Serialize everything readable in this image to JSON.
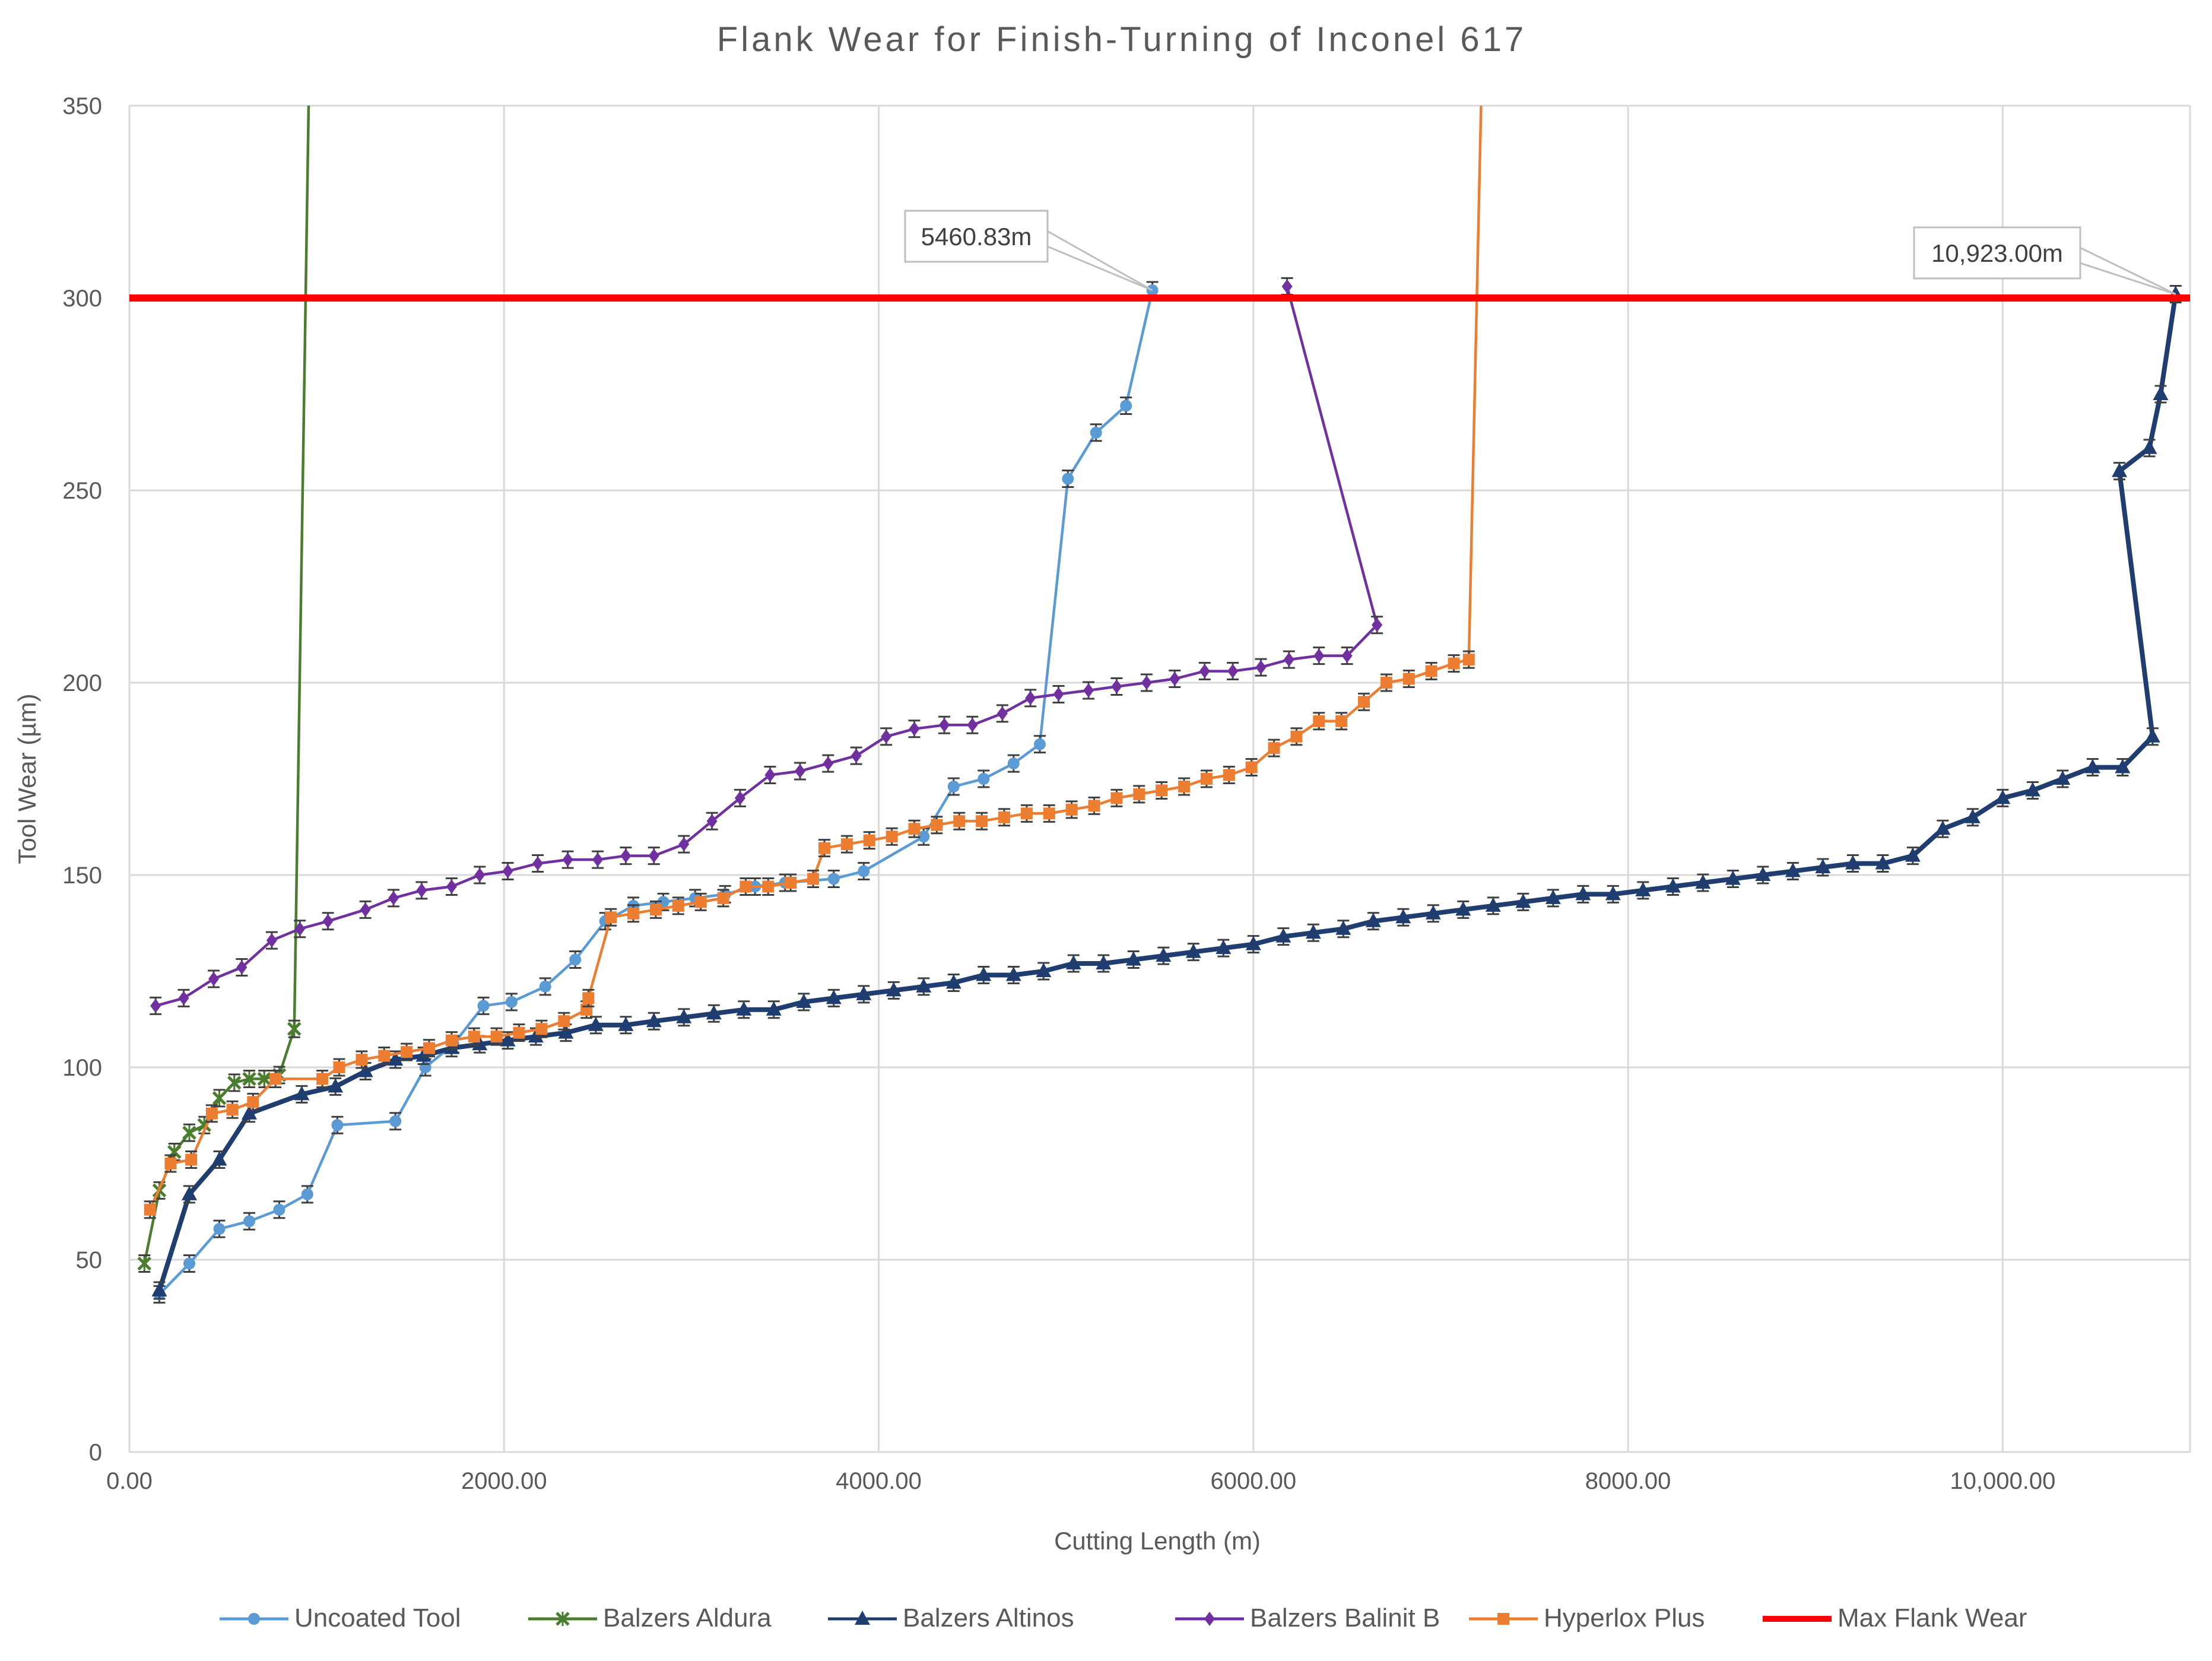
{
  "chart_data": {
    "type": "line",
    "title": "Flank Wear for Finish-Turning of Inconel 617",
    "xlabel": "Cutting Length (m)",
    "ylabel": "Tool Wear (µm)",
    "xlim": [
      0,
      11000
    ],
    "ylim": [
      0,
      350
    ],
    "x_ticks": [
      {
        "value": 0,
        "label": "0.00"
      },
      {
        "value": 2000,
        "label": "2000.00"
      },
      {
        "value": 4000,
        "label": "4000.00"
      },
      {
        "value": 6000,
        "label": "6000.00"
      },
      {
        "value": 8000,
        "label": "8000.00"
      },
      {
        "value": 10000,
        "label": "10,000.00"
      }
    ],
    "y_ticks": [
      {
        "value": 0,
        "label": "0"
      },
      {
        "value": 50,
        "label": "50"
      },
      {
        "value": 100,
        "label": "100"
      },
      {
        "value": 150,
        "label": "150"
      },
      {
        "value": 200,
        "label": "200"
      },
      {
        "value": 250,
        "label": "250"
      },
      {
        "value": 300,
        "label": "300"
      },
      {
        "value": 350,
        "label": "350"
      }
    ],
    "grid": true,
    "legend_position": "bottom",
    "error_bars": true,
    "series": [
      {
        "name": "Uncoated Tool",
        "color": "#5B9BD5",
        "marker": "circle",
        "points": [
          [
            160,
            41
          ],
          [
            320,
            49
          ],
          [
            480,
            58
          ],
          [
            640,
            60
          ],
          [
            800,
            63
          ],
          [
            950,
            67
          ],
          [
            1110,
            85
          ],
          [
            1420,
            86
          ],
          [
            1580,
            100
          ],
          [
            1730,
            106
          ],
          [
            1890,
            116
          ],
          [
            2040,
            117
          ],
          [
            2220,
            121
          ],
          [
            2380,
            128
          ],
          [
            2540,
            138
          ],
          [
            2690,
            142
          ],
          [
            2850,
            143
          ],
          [
            3020,
            144
          ],
          [
            3180,
            145
          ],
          [
            3340,
            147
          ],
          [
            3500,
            148
          ],
          [
            3760,
            149
          ],
          [
            3920,
            151
          ],
          [
            4240,
            160
          ],
          [
            4400,
            173
          ],
          [
            4560,
            175
          ],
          [
            4720,
            179
          ],
          [
            4860,
            184
          ],
          [
            5010,
            253
          ],
          [
            5160,
            265
          ],
          [
            5320,
            272
          ],
          [
            5460.83,
            302
          ]
        ]
      },
      {
        "name": "Balzers Aldura",
        "color": "#4A7D2E",
        "marker": "x",
        "points": [
          [
            80,
            49
          ],
          [
            160,
            68
          ],
          [
            240,
            78
          ],
          [
            320,
            83
          ],
          [
            400,
            85
          ],
          [
            480,
            92
          ],
          [
            560,
            96
          ],
          [
            640,
            97
          ],
          [
            720,
            97
          ],
          [
            800,
            98
          ],
          [
            880,
            110
          ],
          [
            960,
            360
          ]
        ]
      },
      {
        "name": "Balzers Altinos",
        "color": "#1F3D6E",
        "marker": "triangle",
        "points": [
          [
            160,
            42
          ],
          [
            320,
            67
          ],
          [
            480,
            76
          ],
          [
            640,
            88
          ],
          [
            920,
            93
          ],
          [
            1100,
            95
          ],
          [
            1260,
            99
          ],
          [
            1420,
            102
          ],
          [
            1570,
            103
          ],
          [
            1720,
            105
          ],
          [
            1870,
            106
          ],
          [
            2020,
            107
          ],
          [
            2170,
            108
          ],
          [
            2330,
            109
          ],
          [
            2490,
            111
          ],
          [
            2650,
            111
          ],
          [
            2800,
            112
          ],
          [
            2960,
            113
          ],
          [
            3120,
            114
          ],
          [
            3280,
            115
          ],
          [
            3440,
            115
          ],
          [
            3600,
            117
          ],
          [
            3760,
            118
          ],
          [
            3920,
            119
          ],
          [
            4080,
            120
          ],
          [
            4240,
            121
          ],
          [
            4400,
            122
          ],
          [
            4560,
            124
          ],
          [
            4720,
            124
          ],
          [
            4880,
            125
          ],
          [
            5040,
            127
          ],
          [
            5200,
            127
          ],
          [
            5360,
            128
          ],
          [
            5520,
            129
          ],
          [
            5680,
            130
          ],
          [
            5840,
            131
          ],
          [
            6000,
            132
          ],
          [
            6160,
            134
          ],
          [
            6320,
            135
          ],
          [
            6480,
            136
          ],
          [
            6640,
            138
          ],
          [
            6800,
            139
          ],
          [
            6960,
            140
          ],
          [
            7120,
            141
          ],
          [
            7280,
            142
          ],
          [
            7440,
            143
          ],
          [
            7600,
            144
          ],
          [
            7760,
            145
          ],
          [
            7920,
            145
          ],
          [
            8080,
            146
          ],
          [
            8240,
            147
          ],
          [
            8400,
            148
          ],
          [
            8560,
            149
          ],
          [
            8720,
            150
          ],
          [
            8880,
            151
          ],
          [
            9040,
            152
          ],
          [
            9200,
            153
          ],
          [
            9360,
            153
          ],
          [
            9520,
            155
          ],
          [
            9680,
            162
          ],
          [
            9840,
            165
          ],
          [
            10000,
            170
          ],
          [
            10160,
            172
          ],
          [
            10320,
            175
          ],
          [
            10480,
            178
          ],
          [
            10640,
            178
          ],
          [
            10800,
            186
          ],
          [
            10623,
            255
          ],
          [
            10783,
            261
          ],
          [
            10843,
            275
          ],
          [
            10923,
            301
          ]
        ]
      },
      {
        "name": "Balzers Balinit B",
        "color": "#7030A0",
        "marker": "diamond",
        "points": [
          [
            140,
            116
          ],
          [
            290,
            118
          ],
          [
            450,
            123
          ],
          [
            600,
            126
          ],
          [
            760,
            133
          ],
          [
            910,
            136
          ],
          [
            1060,
            138
          ],
          [
            1260,
            141
          ],
          [
            1410,
            144
          ],
          [
            1560,
            146
          ],
          [
            1720,
            147
          ],
          [
            1870,
            150
          ],
          [
            2020,
            151
          ],
          [
            2180,
            153
          ],
          [
            2340,
            154
          ],
          [
            2500,
            154
          ],
          [
            2650,
            155
          ],
          [
            2800,
            155
          ],
          [
            2960,
            158
          ],
          [
            3110,
            164
          ],
          [
            3260,
            170
          ],
          [
            3420,
            176
          ],
          [
            3580,
            177
          ],
          [
            3730,
            179
          ],
          [
            3880,
            181
          ],
          [
            4040,
            186
          ],
          [
            4190,
            188
          ],
          [
            4350,
            189
          ],
          [
            4500,
            189
          ],
          [
            4660,
            192
          ],
          [
            4810,
            196
          ],
          [
            4960,
            197
          ],
          [
            5120,
            198
          ],
          [
            5270,
            199
          ],
          [
            5430,
            200
          ],
          [
            5580,
            201
          ],
          [
            5740,
            203
          ],
          [
            5890,
            203
          ],
          [
            6040,
            204
          ],
          [
            6190,
            206
          ],
          [
            6350,
            207
          ],
          [
            6500,
            207
          ],
          [
            6660,
            215
          ],
          [
            6180,
            303
          ]
        ]
      },
      {
        "name": "Hyperlox Plus",
        "color": "#ED7D31",
        "marker": "square",
        "points": [
          [
            110,
            63
          ],
          [
            220,
            75
          ],
          [
            330,
            76
          ],
          [
            440,
            88
          ],
          [
            550,
            89
          ],
          [
            660,
            91
          ],
          [
            780,
            97
          ],
          [
            1030,
            97
          ],
          [
            1120,
            100
          ],
          [
            1240,
            102
          ],
          [
            1360,
            103
          ],
          [
            1480,
            104
          ],
          [
            1600,
            105
          ],
          [
            1720,
            107
          ],
          [
            1840,
            108
          ],
          [
            1960,
            108
          ],
          [
            2080,
            109
          ],
          [
            2200,
            110
          ],
          [
            2320,
            112
          ],
          [
            2440,
            115
          ],
          [
            2450,
            118
          ],
          [
            2570,
            139
          ],
          [
            2690,
            140
          ],
          [
            2810,
            141
          ],
          [
            2930,
            142
          ],
          [
            3050,
            143
          ],
          [
            3170,
            144
          ],
          [
            3290,
            147
          ],
          [
            3410,
            147
          ],
          [
            3530,
            148
          ],
          [
            3650,
            149
          ],
          [
            3710,
            157
          ],
          [
            3830,
            158
          ],
          [
            3950,
            159
          ],
          [
            4070,
            160
          ],
          [
            4190,
            162
          ],
          [
            4310,
            163
          ],
          [
            4430,
            164
          ],
          [
            4550,
            164
          ],
          [
            4670,
            165
          ],
          [
            4790,
            166
          ],
          [
            4910,
            166
          ],
          [
            5030,
            167
          ],
          [
            5150,
            168
          ],
          [
            5270,
            170
          ],
          [
            5390,
            171
          ],
          [
            5510,
            172
          ],
          [
            5630,
            173
          ],
          [
            5750,
            175
          ],
          [
            5870,
            176
          ],
          [
            5990,
            178
          ],
          [
            6110,
            183
          ],
          [
            6230,
            186
          ],
          [
            6350,
            190
          ],
          [
            6470,
            190
          ],
          [
            6590,
            195
          ],
          [
            6710,
            200
          ],
          [
            6830,
            201
          ],
          [
            6950,
            203
          ],
          [
            7070,
            205
          ],
          [
            7150,
            206
          ],
          [
            7220,
            360
          ]
        ]
      },
      {
        "name": "Max Flank Wear",
        "color": "#FF0000",
        "marker": "none",
        "points": [
          [
            0,
            300
          ],
          [
            11000,
            300
          ]
        ]
      }
    ],
    "annotations": [
      {
        "text": "5460.83m",
        "x": 5460.83,
        "y": 302
      },
      {
        "text": "10,923.00m",
        "x": 10923,
        "y": 301
      }
    ]
  }
}
